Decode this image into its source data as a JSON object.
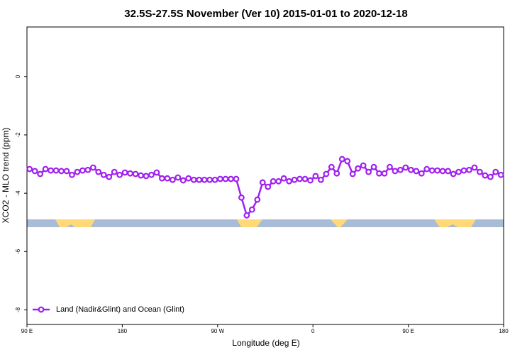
{
  "chart_data": {
    "type": "line",
    "title": "32.5S-27.5S November (Ver 10)   2015-01-01 to 2020-12-18",
    "x_label": "Longitude (deg E)",
    "y_label": "XCO2 - MLO trend (ppm)",
    "xlim": [
      90,
      540
    ],
    "ylim": [
      -8.5,
      1.7
    ],
    "xticks": [
      {
        "value": 90,
        "label": "90 E"
      },
      180,
      {
        "value": 270,
        "label": "90 W"
      },
      {
        "value": 360,
        "label": "0"
      },
      {
        "value": 450,
        "label": "90 E"
      },
      {
        "value": 540,
        "label": "180"
      }
    ],
    "yticks": [
      0,
      -2,
      -4,
      -6,
      -8
    ],
    "grid": false,
    "legend": "bottom left",
    "x": [
      92.5,
      97.5,
      102.5,
      107.5,
      112.5,
      117.5,
      122.5,
      127.5,
      132.5,
      137.5,
      142.5,
      147.5,
      152.5,
      157.5,
      162.5,
      167.5,
      172.5,
      177.5,
      182.5,
      187.5,
      192.5,
      197.5,
      202.5,
      207.5,
      212.5,
      217.5,
      222.5,
      227.5,
      232.5,
      237.5,
      242.5,
      247.5,
      252.5,
      257.5,
      262.5,
      267.5,
      272.5,
      277.5,
      282.5,
      287.5,
      292.5,
      297.5,
      302.5,
      307.5,
      312.5,
      317.5,
      322.5,
      327.5,
      332.5,
      337.5,
      342.5,
      347.5,
      352.5,
      357.5,
      362.5,
      367.5,
      372.5,
      377.5,
      382.5,
      387.5,
      392.5,
      397.5,
      402.5,
      407.5,
      412.5,
      417.5,
      422.5,
      427.5,
      432.5,
      437.5,
      442.5,
      447.5,
      452.5,
      457.5,
      462.5,
      467.5,
      472.5,
      477.5,
      482.5,
      487.5,
      492.5,
      497.5,
      502.5,
      507.5,
      512.5,
      517.5,
      522.5,
      527.5,
      532.5,
      537.5
    ],
    "series": [
      {
        "name": "Land (Nadir&Glint) and Ocean (Glint)",
        "color": "#a020f0",
        "values": [
          -3.17,
          -3.24,
          -3.34,
          -3.17,
          -3.22,
          -3.22,
          -3.24,
          -3.24,
          -3.37,
          -3.27,
          -3.22,
          -3.2,
          -3.12,
          -3.27,
          -3.37,
          -3.44,
          -3.27,
          -3.37,
          -3.29,
          -3.32,
          -3.34,
          -3.39,
          -3.41,
          -3.37,
          -3.29,
          -3.49,
          -3.49,
          -3.54,
          -3.46,
          -3.56,
          -3.49,
          -3.54,
          -3.54,
          -3.54,
          -3.54,
          -3.54,
          -3.51,
          -3.51,
          -3.51,
          -3.51,
          -4.15,
          -4.76,
          -4.56,
          -4.22,
          -3.63,
          -3.78,
          -3.59,
          -3.59,
          -3.49,
          -3.59,
          -3.54,
          -3.51,
          -3.51,
          -3.56,
          -3.41,
          -3.54,
          -3.34,
          -3.1,
          -3.32,
          -2.83,
          -2.9,
          -3.34,
          -3.15,
          -3.05,
          -3.27,
          -3.1,
          -3.32,
          -3.32,
          -3.1,
          -3.24,
          -3.2,
          -3.12,
          -3.2,
          -3.24,
          -3.32,
          -3.17,
          -3.22,
          -3.22,
          -3.24,
          -3.24,
          -3.34,
          -3.27,
          -3.22,
          -3.2,
          -3.12,
          -3.27,
          -3.39,
          -3.44,
          -3.27,
          -3.37
        ]
      }
    ]
  }
}
